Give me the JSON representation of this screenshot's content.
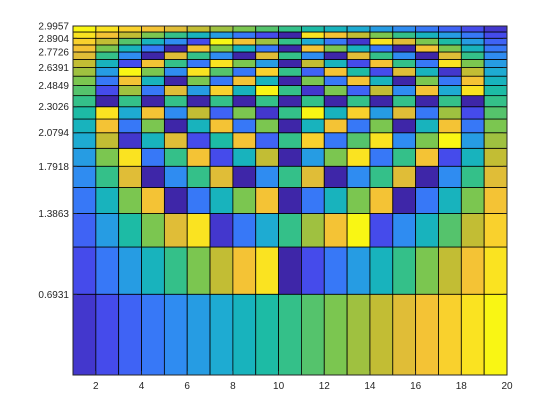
{
  "chart_data": {
    "type": "heatmap",
    "title": "",
    "xlabel": "",
    "ylabel": "",
    "x_edges": [
      1,
      2,
      3,
      4,
      5,
      6,
      7,
      8,
      9,
      10,
      11,
      12,
      13,
      14,
      15,
      16,
      17,
      18,
      19,
      20
    ],
    "y_edges_log": [
      0,
      0.6931,
      1.0986,
      1.3863,
      1.6094,
      1.7918,
      1.9459,
      2.0794,
      2.1972,
      2.3026,
      2.3979,
      2.4849,
      2.5649,
      2.6391,
      2.7081,
      2.7726,
      2.8332,
      2.8904,
      2.9444,
      2.9957
    ],
    "xlim": [
      1,
      20
    ],
    "ylim": [
      0,
      2.9957
    ],
    "x_ticks": [
      2,
      4,
      6,
      8,
      10,
      12,
      14,
      16,
      18,
      20
    ],
    "x_tick_labels": [
      "2",
      "4",
      "6",
      "8",
      "10",
      "12",
      "14",
      "16",
      "18",
      "20"
    ],
    "y_ticks": [
      0.6931,
      1.3863,
      1.7918,
      2.0794,
      2.3026,
      2.4849,
      2.6391,
      2.7726,
      2.8904,
      2.9957
    ],
    "y_tick_labels": [
      "0.6931",
      "1.3863",
      "1.7918",
      "2.0794",
      "2.3026",
      "2.4849",
      "2.6391",
      "2.7726",
      "2.8904",
      "2.9957"
    ],
    "value_rule": "cell(col j, row i) = mod(j * i, 20), j,i = 1..19",
    "colormap": "parula",
    "colormap_stops": [
      "#3e26a8",
      "#4744e8",
      "#3c6efa",
      "#2d8ff0",
      "#1eaad4",
      "#15b9b0",
      "#3cc27e",
      "#7fc64d",
      "#bcbd34",
      "#f1bd38",
      "#fbd52b",
      "#f9f614"
    ],
    "grid": false
  }
}
